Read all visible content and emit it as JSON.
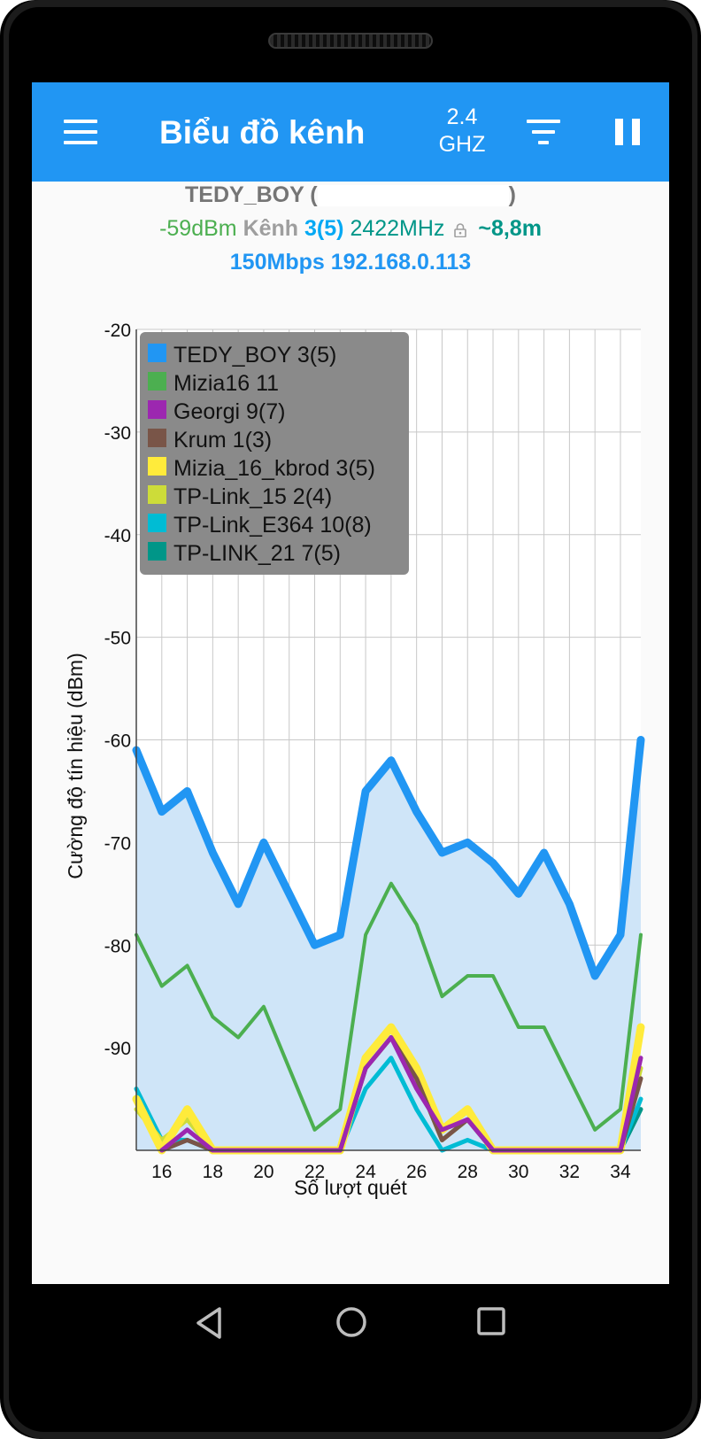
{
  "app_bar": {
    "title": "Biểu đồ kênh",
    "band_line1": "2.4",
    "band_line2": "GHZ",
    "menu_icon": "hamburger-menu-icon",
    "filter_icon": "filter-icon",
    "pause_icon": "pause-icon"
  },
  "connection": {
    "ssid": "TEDY_BOY",
    "ssid_open": "(",
    "ssid_close": ")",
    "signal": "-59dBm",
    "channel_label": "Kênh",
    "channel": "3(5)",
    "frequency": "2422MHz",
    "distance": "~8,8m",
    "speed_ip": "150Mbps 192.168.0.113"
  },
  "colors": {
    "appbar": "#2196f3",
    "tedy_boy": "#2196f3",
    "mizia16": "#4caf50",
    "georgi": "#9c27b0",
    "krum": "#795548",
    "mizia_16_kbrod": "#ffeb3b",
    "tp_link_15": "#cddc39",
    "tp_link_e364": "#00bcd4",
    "tp_link_21": "#009688"
  },
  "chart_data": {
    "type": "line",
    "xlabel": "Số lượt quét",
    "ylabel": "Cường độ tín hiệu (dBm)",
    "xlim": [
      15,
      34.8
    ],
    "ylim": [
      -100,
      -20
    ],
    "x_ticks": [
      "16",
      "18",
      "20",
      "22",
      "24",
      "26",
      "28",
      "30",
      "32",
      "34"
    ],
    "y_ticks": [
      "-20",
      "-30",
      "-40",
      "-50",
      "-60",
      "-70",
      "-80",
      "-90"
    ],
    "grid": true,
    "legend_position": "top-left",
    "x": [
      15,
      16,
      17,
      18,
      19,
      20,
      21,
      22,
      23,
      24,
      25,
      26,
      27,
      28,
      29,
      30,
      31,
      32,
      33,
      34,
      34.8
    ],
    "series": [
      {
        "name": "TEDY_BOY 3(5)",
        "color_key": "tedy_boy",
        "values": [
          -61,
          -67,
          -65,
          -71,
          -76,
          -70,
          -75,
          -80,
          -79,
          -65,
          -62,
          -67,
          -71,
          -70,
          -72,
          -75,
          -71,
          -76,
          -83,
          -79,
          -60
        ]
      },
      {
        "name": "Mizia16 11",
        "color_key": "mizia16",
        "values": [
          -79,
          -84,
          -82,
          -87,
          -89,
          -86,
          -92,
          -98,
          -96,
          -79,
          -74,
          -78,
          -85,
          -83,
          -83,
          -88,
          -88,
          -93,
          -98,
          -96,
          -79
        ]
      },
      {
        "name": "Georgi 9(7)",
        "color_key": "georgi",
        "values": [
          null,
          -100,
          -98,
          -100,
          -100,
          -100,
          -100,
          -100,
          -100,
          -92,
          -89,
          -94,
          -98,
          -97,
          -100,
          -100,
          -100,
          -100,
          -100,
          -100,
          -91
        ]
      },
      {
        "name": "Krum 1(3)",
        "color_key": "krum",
        "values": [
          null,
          -100,
          -99,
          -100,
          -100,
          -100,
          -100,
          -100,
          -100,
          -92,
          -89,
          -93,
          -99,
          -97,
          -100,
          -100,
          -100,
          -100,
          -100,
          -100,
          -93
        ]
      },
      {
        "name": "Mizia_16_kbrod 3(5)",
        "color_key": "mizia_16_kbrod",
        "values": [
          -95,
          -100,
          -96,
          -100,
          -100,
          -100,
          -100,
          -100,
          -100,
          -91,
          -88,
          -92,
          -98,
          -96,
          -100,
          -100,
          -100,
          -100,
          -100,
          -100,
          -88
        ]
      },
      {
        "name": "TP-Link_15 2(4)",
        "color_key": "tp_link_15",
        "values": [
          -96,
          -99,
          -97,
          -100,
          -100,
          -100,
          -100,
          -100,
          -100,
          -92,
          -89,
          -93,
          -99,
          -97,
          -100,
          -100,
          -100,
          -100,
          -100,
          -100,
          -92
        ]
      },
      {
        "name": "TP-Link_E364 10(8)",
        "color_key": "tp_link_e364",
        "values": [
          -94,
          -99,
          -99,
          -100,
          -100,
          -100,
          -100,
          -100,
          -100,
          -94,
          -91,
          -96,
          -100,
          -99,
          -100,
          -100,
          -100,
          -100,
          -100,
          -100,
          -95
        ]
      },
      {
        "name": "TP-LINK_21 7(5)",
        "color_key": "tp_link_21",
        "values": [
          null,
          null,
          null,
          null,
          null,
          null,
          null,
          null,
          null,
          null,
          null,
          null,
          null,
          null,
          null,
          -100,
          -100,
          -100,
          -100,
          -100,
          -96
        ]
      }
    ]
  },
  "nav": {
    "back_icon": "back-triangle-icon",
    "home_icon": "home-circle-icon",
    "recents_icon": "recents-square-icon"
  }
}
